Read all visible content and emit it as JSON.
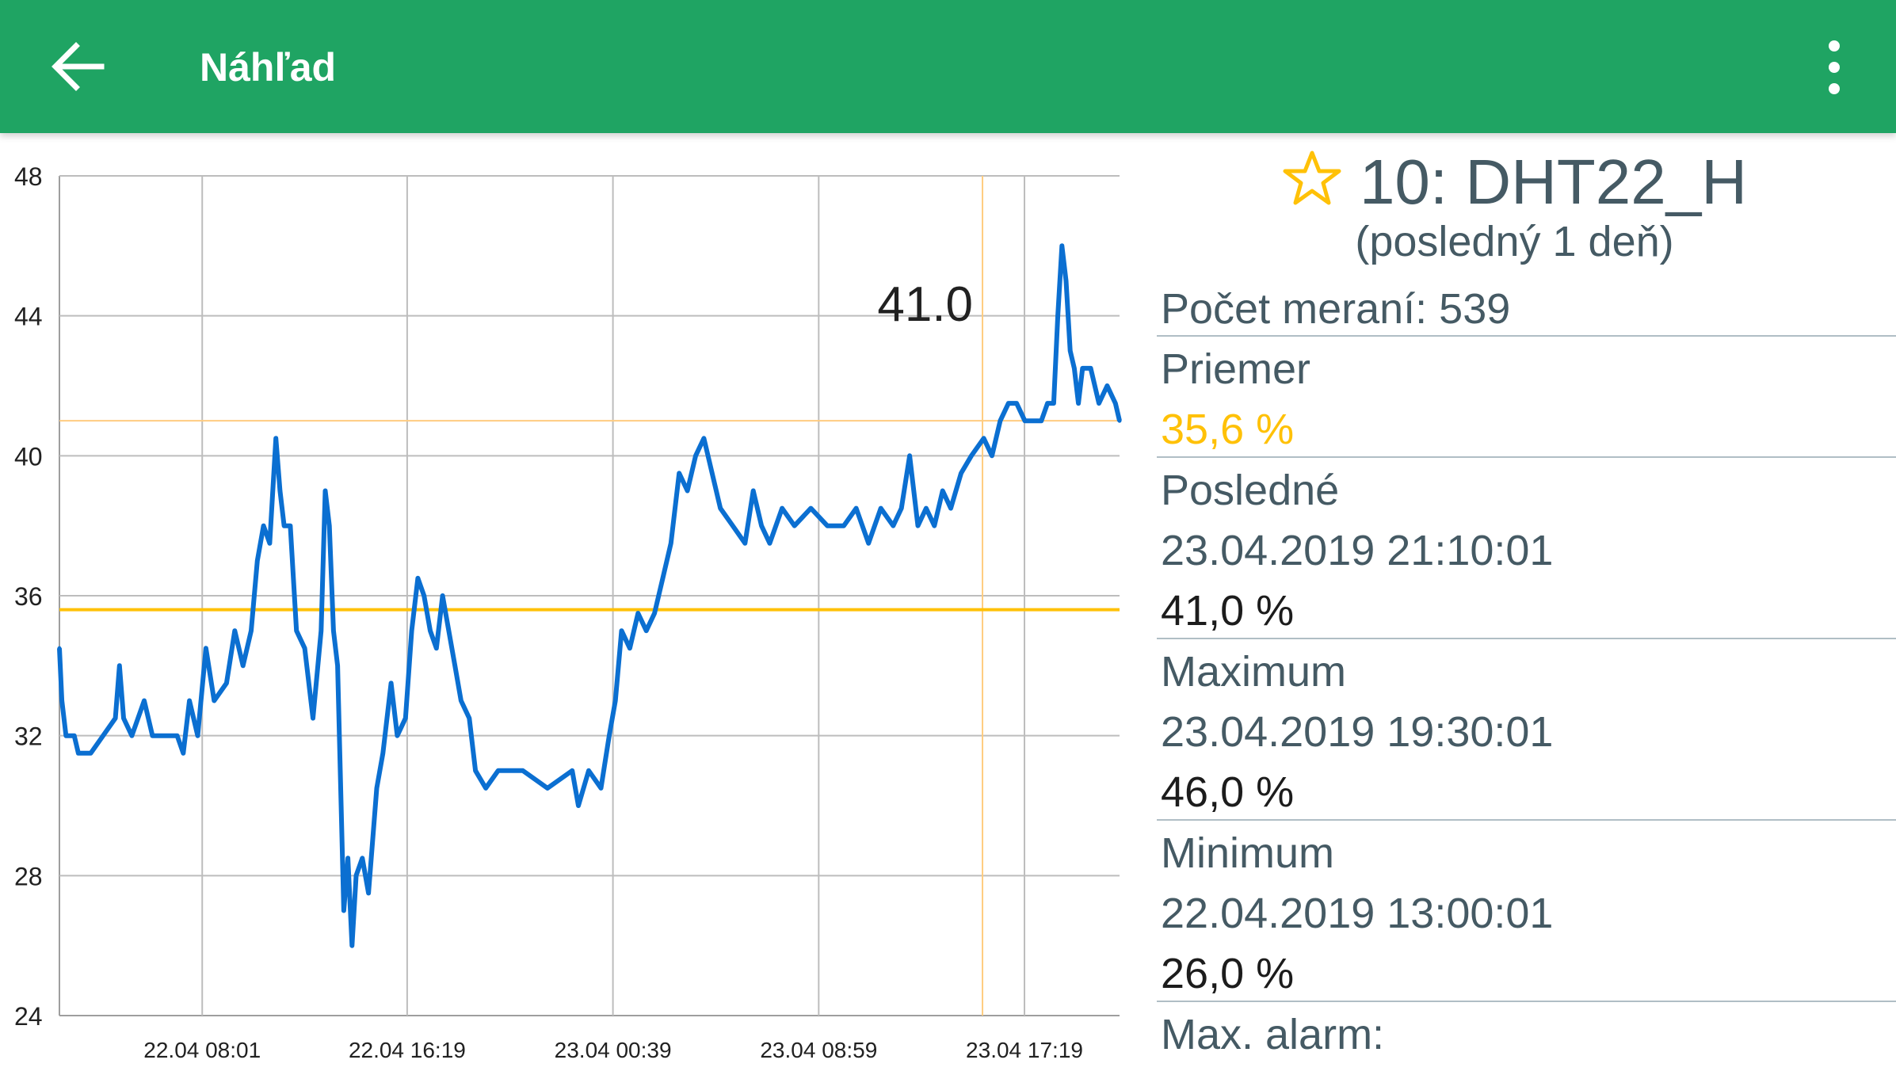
{
  "appbar": {
    "title": "Náhľad",
    "back_icon": "arrow-left-icon",
    "menu_icon": "more-vertical-icon",
    "color": "#1fa463"
  },
  "sensor": {
    "favorite_icon": "star-outline-icon",
    "name": "10: DHT22_H",
    "period": "(posledný 1 deň)"
  },
  "stats": {
    "count": "Počet meraní: 539",
    "average_label": "Priemer",
    "average_value": "35,6 %",
    "last_label": "Posledné",
    "last_time": "23.04.2019 21:10:01",
    "last_value": "41,0 %",
    "max_label": "Maximum",
    "max_time": "23.04.2019 19:30:01",
    "max_value": "46,0 %",
    "min_label": "Minimum",
    "min_time": "22.04.2019 13:00:01",
    "min_value": "26,0 %",
    "max_alarm_label": "Max. alarm:"
  },
  "colors": {
    "line": "#0b6fd1",
    "average_line": "#ffc107",
    "marker": "#ffcc80",
    "grid": "#bdbdbd",
    "accent": "#ffc107",
    "text": "#455a64"
  },
  "chart_data": {
    "type": "line",
    "title": "",
    "xlabel": "",
    "ylabel": "",
    "ylim": [
      24,
      48
    ],
    "yticks": [
      24,
      28,
      32,
      36,
      40,
      44,
      48
    ],
    "xlim": [
      "22.04.2019 02:14",
      "23.04.2019 21:10"
    ],
    "xtick_positions": [
      "2019-04-22T08:01",
      "2019-04-22T16:19",
      "2019-04-23T00:39",
      "2019-04-23T08:59",
      "2019-04-23T17:19"
    ],
    "xtick_labels": [
      "22.04 08:01",
      "22.04 16:19",
      "23.04 00:39",
      "23.04 08:59",
      "23.04 17:19"
    ],
    "average": 35.6,
    "marker": {
      "value": 41.0,
      "label": "41.0",
      "x": "2019-04-23T15:37"
    },
    "series": [
      {
        "points": [
          [
            "2019-04-22T02:14",
            34.5
          ],
          [
            "2019-04-22T02:20",
            33.0
          ],
          [
            "2019-04-22T02:30",
            32.0
          ],
          [
            "2019-04-22T02:50",
            32.0
          ],
          [
            "2019-04-22T03:00",
            31.5
          ],
          [
            "2019-04-22T03:30",
            31.5
          ],
          [
            "2019-04-22T04:00",
            32.0
          ],
          [
            "2019-04-22T04:30",
            32.5
          ],
          [
            "2019-04-22T04:40",
            34.0
          ],
          [
            "2019-04-22T04:50",
            32.5
          ],
          [
            "2019-04-22T05:10",
            32.0
          ],
          [
            "2019-04-22T05:40",
            33.0
          ],
          [
            "2019-04-22T06:00",
            32.0
          ],
          [
            "2019-04-22T07:00",
            32.0
          ],
          [
            "2019-04-22T07:15",
            31.5
          ],
          [
            "2019-04-22T07:30",
            33.0
          ],
          [
            "2019-04-22T07:50",
            32.0
          ],
          [
            "2019-04-22T08:10",
            34.5
          ],
          [
            "2019-04-22T08:30",
            33.0
          ],
          [
            "2019-04-22T09:00",
            33.5
          ],
          [
            "2019-04-22T09:20",
            35.0
          ],
          [
            "2019-04-22T09:40",
            34.0
          ],
          [
            "2019-04-22T10:00",
            35.0
          ],
          [
            "2019-04-22T10:15",
            37.0
          ],
          [
            "2019-04-22T10:30",
            38.0
          ],
          [
            "2019-04-22T10:45",
            37.5
          ],
          [
            "2019-04-22T11:00",
            40.5
          ],
          [
            "2019-04-22T11:10",
            39.0
          ],
          [
            "2019-04-22T11:20",
            38.0
          ],
          [
            "2019-04-22T11:35",
            38.0
          ],
          [
            "2019-04-22T11:50",
            35.0
          ],
          [
            "2019-04-22T12:10",
            34.5
          ],
          [
            "2019-04-22T12:30",
            32.5
          ],
          [
            "2019-04-22T12:50",
            35.0
          ],
          [
            "2019-04-22T13:00",
            39.0
          ],
          [
            "2019-04-22T13:10",
            38.0
          ],
          [
            "2019-04-22T13:20",
            35.0
          ],
          [
            "2019-04-22T13:30",
            34.0
          ],
          [
            "2019-04-22T13:45",
            27.0
          ],
          [
            "2019-04-22T13:55",
            28.5
          ],
          [
            "2019-04-22T14:05",
            26.0
          ],
          [
            "2019-04-22T14:15",
            28.0
          ],
          [
            "2019-04-22T14:30",
            28.5
          ],
          [
            "2019-04-22T14:45",
            27.5
          ],
          [
            "2019-04-22T15:05",
            30.5
          ],
          [
            "2019-04-22T15:20",
            31.5
          ],
          [
            "2019-04-22T15:40",
            33.5
          ],
          [
            "2019-04-22T15:55",
            32.0
          ],
          [
            "2019-04-22T16:15",
            32.5
          ],
          [
            "2019-04-22T16:30",
            35.0
          ],
          [
            "2019-04-22T16:45",
            36.5
          ],
          [
            "2019-04-22T17:00",
            36.0
          ],
          [
            "2019-04-22T17:15",
            35.0
          ],
          [
            "2019-04-22T17:30",
            34.5
          ],
          [
            "2019-04-22T17:45",
            36.0
          ],
          [
            "2019-04-22T18:00",
            35.0
          ],
          [
            "2019-04-22T18:15",
            34.0
          ],
          [
            "2019-04-22T18:30",
            33.0
          ],
          [
            "2019-04-22T18:50",
            32.5
          ],
          [
            "2019-04-22T19:05",
            31.0
          ],
          [
            "2019-04-22T19:30",
            30.5
          ],
          [
            "2019-04-22T20:00",
            31.0
          ],
          [
            "2019-04-22T21:00",
            31.0
          ],
          [
            "2019-04-22T22:00",
            30.5
          ],
          [
            "2019-04-22T23:00",
            31.0
          ],
          [
            "2019-04-22T23:15",
            30.0
          ],
          [
            "2019-04-22T23:40",
            31.0
          ],
          [
            "2019-04-23T00:10",
            30.5
          ],
          [
            "2019-04-23T00:30",
            32.0
          ],
          [
            "2019-04-23T00:45",
            33.0
          ],
          [
            "2019-04-23T01:00",
            35.0
          ],
          [
            "2019-04-23T01:20",
            34.5
          ],
          [
            "2019-04-23T01:40",
            35.5
          ],
          [
            "2019-04-23T02:00",
            35.0
          ],
          [
            "2019-04-23T02:20",
            35.5
          ],
          [
            "2019-04-23T02:40",
            36.5
          ],
          [
            "2019-04-23T03:00",
            37.5
          ],
          [
            "2019-04-23T03:20",
            39.5
          ],
          [
            "2019-04-23T03:40",
            39.0
          ],
          [
            "2019-04-23T04:00",
            40.0
          ],
          [
            "2019-04-23T04:20",
            40.5
          ],
          [
            "2019-04-23T04:40",
            39.5
          ],
          [
            "2019-04-23T05:00",
            38.5
          ],
          [
            "2019-04-23T05:30",
            38.0
          ],
          [
            "2019-04-23T06:00",
            37.5
          ],
          [
            "2019-04-23T06:20",
            39.0
          ],
          [
            "2019-04-23T06:40",
            38.0
          ],
          [
            "2019-04-23T07:00",
            37.5
          ],
          [
            "2019-04-23T07:30",
            38.5
          ],
          [
            "2019-04-23T08:00",
            38.0
          ],
          [
            "2019-04-23T08:40",
            38.5
          ],
          [
            "2019-04-23T09:20",
            38.0
          ],
          [
            "2019-04-23T10:00",
            38.0
          ],
          [
            "2019-04-23T10:30",
            38.5
          ],
          [
            "2019-04-23T11:00",
            37.5
          ],
          [
            "2019-04-23T11:30",
            38.5
          ],
          [
            "2019-04-23T12:00",
            38.0
          ],
          [
            "2019-04-23T12:20",
            38.5
          ],
          [
            "2019-04-23T12:40",
            40.0
          ],
          [
            "2019-04-23T13:00",
            38.0
          ],
          [
            "2019-04-23T13:20",
            38.5
          ],
          [
            "2019-04-23T13:40",
            38.0
          ],
          [
            "2019-04-23T14:00",
            39.0
          ],
          [
            "2019-04-23T14:20",
            38.5
          ],
          [
            "2019-04-23T14:45",
            39.5
          ],
          [
            "2019-04-23T15:10",
            40.0
          ],
          [
            "2019-04-23T15:40",
            40.5
          ],
          [
            "2019-04-23T16:00",
            40.0
          ],
          [
            "2019-04-23T16:20",
            41.0
          ],
          [
            "2019-04-23T16:40",
            41.5
          ],
          [
            "2019-04-23T17:00",
            41.5
          ],
          [
            "2019-04-23T17:20",
            41.0
          ],
          [
            "2019-04-23T17:45",
            41.0
          ],
          [
            "2019-04-23T18:00",
            41.0
          ],
          [
            "2019-04-23T18:15",
            41.5
          ],
          [
            "2019-04-23T18:30",
            41.5
          ],
          [
            "2019-04-23T18:40",
            44.0
          ],
          [
            "2019-04-23T18:50",
            46.0
          ],
          [
            "2019-04-23T19:00",
            45.0
          ],
          [
            "2019-04-23T19:10",
            43.0
          ],
          [
            "2019-04-23T19:20",
            42.5
          ],
          [
            "2019-04-23T19:30",
            41.5
          ],
          [
            "2019-04-23T19:40",
            42.5
          ],
          [
            "2019-04-23T20:00",
            42.5
          ],
          [
            "2019-04-23T20:20",
            41.5
          ],
          [
            "2019-04-23T20:40",
            42.0
          ],
          [
            "2019-04-23T21:00",
            41.5
          ],
          [
            "2019-04-23T21:10",
            41.0
          ]
        ]
      }
    ]
  }
}
